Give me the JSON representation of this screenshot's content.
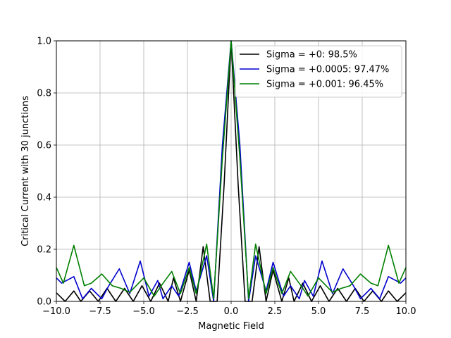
{
  "chart_data": {
    "type": "line",
    "title": "",
    "xlabel": "Magnetic Field",
    "ylabel": "Critical Current with 30 junctions",
    "xlim": [
      -10,
      10
    ],
    "ylim": [
      0,
      1
    ],
    "xticks": [
      -10,
      -7.5,
      -5,
      -2.5,
      0,
      2.5,
      5,
      7.5,
      10
    ],
    "xtick_labels": [
      "−10.0",
      "−7.5",
      "−5.0",
      "−2.5",
      "0.0",
      "2.5",
      "5.0",
      "7.5",
      "10.0"
    ],
    "yticks": [
      0,
      0.2,
      0.4,
      0.6,
      0.8,
      1.0
    ],
    "ytick_labels": [
      "0.0",
      "0.2",
      "0.4",
      "0.6",
      "0.8",
      "1.0"
    ],
    "grid": true,
    "legend_position": "top-right",
    "series": [
      {
        "name": "Sigma = +0: 98.5%",
        "color": "#000000",
        "x": [
          -10.0,
          -9.5,
          -9.0,
          -8.6,
          -8.1,
          -7.6,
          -7.1,
          -6.6,
          -6.1,
          -5.6,
          -5.1,
          -4.6,
          -4.1,
          -3.6,
          -3.3,
          -2.9,
          -2.4,
          -2.0,
          -1.6,
          -1.2,
          -0.8,
          -0.4,
          0.0,
          0.4,
          0.8,
          1.2,
          1.6,
          2.0,
          2.4,
          2.9,
          3.3,
          3.6,
          4.1,
          4.6,
          5.1,
          5.6,
          6.1,
          6.6,
          7.1,
          7.6,
          8.1,
          8.6,
          9.0,
          9.5,
          10.0
        ],
        "y": [
          0.033,
          0.0,
          0.04,
          0.0,
          0.04,
          0.0,
          0.05,
          0.0,
          0.05,
          0.0,
          0.06,
          0.0,
          0.07,
          0.0,
          0.09,
          0.0,
          0.12,
          0.0,
          0.21,
          0.0,
          0.0,
          0.45,
          1.0,
          0.45,
          0.0,
          0.0,
          0.21,
          0.0,
          0.12,
          0.0,
          0.09,
          0.0,
          0.07,
          0.0,
          0.06,
          0.0,
          0.05,
          0.0,
          0.05,
          0.0,
          0.04,
          0.0,
          0.04,
          0.0,
          0.033
        ]
      },
      {
        "name": "Sigma = +0.0005: 97.47%",
        "color": "#0000cc",
        "x": [
          -10.0,
          -9.7,
          -9.0,
          -8.5,
          -8.0,
          -7.4,
          -7.0,
          -6.4,
          -5.8,
          -5.2,
          -4.7,
          -4.2,
          -3.9,
          -3.4,
          -3.0,
          -2.4,
          -2.0,
          -1.4,
          -1.0,
          -0.5,
          0.0,
          0.5,
          1.0,
          1.4,
          2.0,
          2.4,
          3.0,
          3.4,
          3.9,
          4.2,
          4.7,
          5.2,
          5.8,
          6.4,
          7.0,
          7.4,
          8.0,
          8.5,
          9.0,
          9.7,
          10.0
        ],
        "y": [
          0.09,
          0.07,
          0.095,
          0.01,
          0.05,
          0.01,
          0.06,
          0.125,
          0.03,
          0.155,
          0.02,
          0.08,
          0.01,
          0.06,
          0.02,
          0.15,
          0.04,
          0.175,
          0.0,
          0.6,
          1.0,
          0.6,
          0.0,
          0.175,
          0.04,
          0.15,
          0.02,
          0.06,
          0.01,
          0.08,
          0.02,
          0.155,
          0.03,
          0.125,
          0.06,
          0.01,
          0.05,
          0.01,
          0.095,
          0.07,
          0.09
        ]
      },
      {
        "name": "Sigma = +0.001: 96.45%",
        "color": "#007f00",
        "x": [
          -10.0,
          -9.6,
          -9.0,
          -8.4,
          -8.0,
          -7.4,
          -6.8,
          -6.3,
          -5.8,
          -5.0,
          -4.4,
          -4.0,
          -3.4,
          -2.9,
          -2.4,
          -2.0,
          -1.4,
          -1.0,
          -0.5,
          0.0,
          0.5,
          1.0,
          1.4,
          2.0,
          2.4,
          2.9,
          3.4,
          4.0,
          4.4,
          5.0,
          5.8,
          6.3,
          6.8,
          7.4,
          8.0,
          8.4,
          9.0,
          9.6,
          10.0
        ],
        "y": [
          0.13,
          0.07,
          0.215,
          0.06,
          0.07,
          0.105,
          0.06,
          0.05,
          0.035,
          0.09,
          0.02,
          0.06,
          0.115,
          0.03,
          0.13,
          0.03,
          0.22,
          0.01,
          0.55,
          1.0,
          0.55,
          0.01,
          0.22,
          0.03,
          0.13,
          0.03,
          0.115,
          0.06,
          0.02,
          0.09,
          0.035,
          0.05,
          0.06,
          0.105,
          0.07,
          0.06,
          0.215,
          0.07,
          0.13
        ]
      }
    ]
  }
}
